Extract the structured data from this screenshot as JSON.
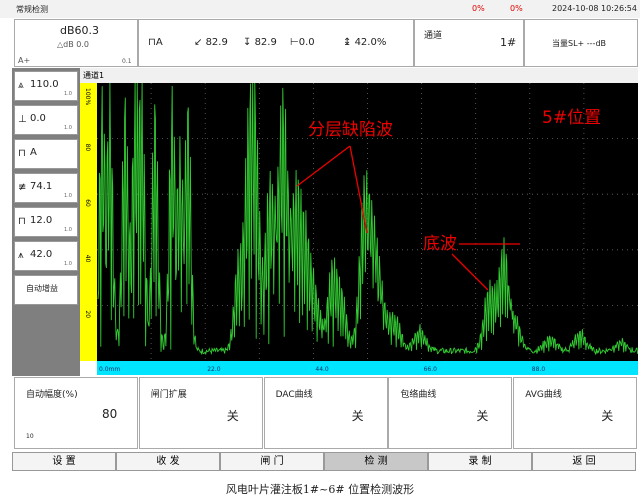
{
  "status_bar": {
    "mode": "常规检测",
    "battery_1": "0%",
    "battery_2": "0%",
    "datetime": "2024-10-08 10:26:54"
  },
  "header": {
    "gain": "dB60.3",
    "delta_gain": "△dB 0.0",
    "gain_mode": "A+",
    "gain_step": "0.1",
    "gate": "A",
    "gate_sound_path": "82.9",
    "gate_depth": "82.9",
    "gate_horizontal": "0.0",
    "gate_amplitude": "42.0%",
    "channel_label": "通道",
    "channel": "1#",
    "equivalent": "当量SL+ ---dB"
  },
  "side_panel": [
    {
      "value": "110.0",
      "step": "1.0"
    },
    {
      "value": "0.0",
      "step": "1.0"
    },
    {
      "value": "A"
    },
    {
      "value": "74.1",
      "step": "1.0"
    },
    {
      "value": "12.0",
      "step": "1.0"
    },
    {
      "value": "42.0",
      "step": "1.0"
    },
    {
      "value": "自动增益"
    }
  ],
  "waveform": {
    "channel": "通道1",
    "y_labels": [
      "100%",
      "80",
      "60",
      "40",
      "20"
    ],
    "x_labels": [
      "0.0mm",
      "22.0",
      "44.0",
      "66.0",
      "88.0"
    ]
  },
  "annotations": {
    "defect": "分层缺陷波",
    "position": "5#位置",
    "bottom": "底波"
  },
  "params": [
    {
      "label": "自动幅度(%)",
      "value": "80",
      "sub": "10"
    },
    {
      "label": "闸门扩展",
      "value": "关"
    },
    {
      "label": "DAC曲线",
      "value": "关"
    },
    {
      "label": "包络曲线",
      "value": "关"
    },
    {
      "label": "AVG曲线",
      "value": "关"
    }
  ],
  "tabs": [
    "设 置",
    "收 发",
    "闸 门",
    "检 测",
    "录 制",
    "返 回"
  ],
  "caption": "风电叶片灌注板1#~6# 位置检测波形"
}
